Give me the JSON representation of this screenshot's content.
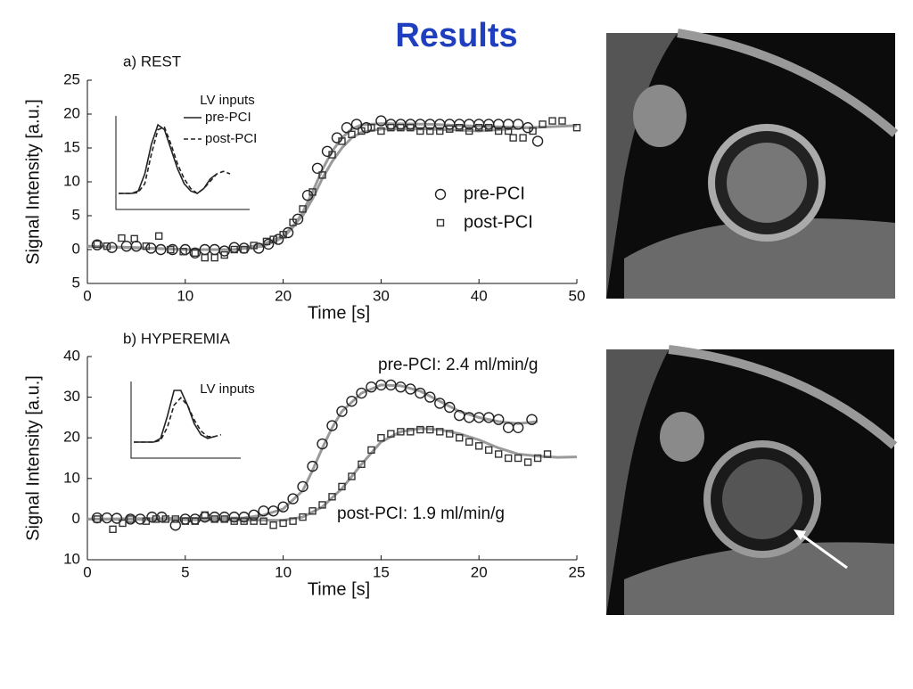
{
  "title": "Results",
  "chart_data": [
    {
      "type": "scatter",
      "title": "a) REST",
      "xlabel": "Time [s]",
      "ylabel": "Signal Intensity [a.u.]",
      "xlim": [
        0,
        50
      ],
      "ylim": [
        -5,
        25
      ],
      "xticks": [
        0,
        10,
        20,
        30,
        40,
        50
      ],
      "yticks": [
        {
          "value": -5,
          "label": "5"
        },
        0,
        5,
        10,
        15,
        20,
        25
      ],
      "legend": true,
      "series": [
        {
          "name": "pre-PCI",
          "marker": "circle",
          "color": "#222222",
          "x": [
            1,
            2.5,
            4,
            5,
            6.5,
            7.5,
            8.7,
            10,
            11,
            12,
            13,
            14,
            15,
            16,
            17.5,
            18.5,
            19.5,
            20.5,
            21.5,
            22.5,
            23.5,
            24.5,
            25.5,
            26.5,
            27.5,
            28.5,
            30,
            31,
            32,
            33,
            34,
            35,
            36,
            37,
            38,
            39,
            40,
            41,
            42,
            43,
            44,
            45,
            46
          ],
          "values": [
            0.7,
            0.3,
            0.5,
            0.5,
            0.2,
            0,
            0,
            0,
            -0.5,
            0,
            0,
            -0.2,
            0.3,
            0.2,
            0.2,
            0.8,
            1.5,
            2.5,
            4.5,
            8,
            12,
            14.5,
            16.5,
            18,
            18.5,
            18,
            19,
            18.5,
            18.5,
            18.5,
            18.5,
            18.5,
            18.5,
            18.5,
            18.5,
            18.5,
            18.5,
            18.5,
            18.5,
            18.5,
            18.5,
            18,
            16
          ]
        },
        {
          "name": "post-PCI",
          "marker": "square",
          "color": "#333333",
          "x": [
            1,
            2,
            3.5,
            4.8,
            6,
            7.3,
            8.5,
            9.8,
            11,
            12,
            13,
            14,
            15,
            16,
            17,
            18.3,
            19,
            20,
            21,
            22,
            23,
            24,
            25,
            26,
            27,
            28,
            29,
            30,
            31,
            32,
            33,
            34,
            35,
            36,
            37,
            38,
            39,
            40,
            41,
            42,
            43,
            43.5,
            44.5,
            45.5,
            46.5,
            47.5,
            48.5,
            50
          ],
          "values": [
            0.8,
            0.5,
            1.7,
            1.6,
            0.5,
            2,
            0,
            -0.3,
            -0.5,
            -1.2,
            -1.2,
            -0.8,
            0,
            0,
            0.6,
            1.2,
            1.5,
            2.2,
            4,
            6,
            8.5,
            11,
            14,
            16,
            17,
            17.5,
            18,
            17.5,
            18,
            18,
            18,
            17.5,
            17.5,
            17.5,
            17.8,
            18,
            17.5,
            18,
            18,
            17.5,
            17.5,
            16.5,
            16.5,
            17.5,
            18.5,
            19,
            19,
            18
          ]
        },
        {
          "marker": "line",
          "color": "#9a9a9a",
          "x": [
            0,
            5,
            10,
            15,
            18,
            20,
            21,
            22,
            23,
            24,
            25,
            26,
            27,
            28,
            30,
            35,
            40,
            45,
            46
          ],
          "values": [
            0.5,
            0.3,
            0,
            0,
            0.5,
            1.8,
            3.3,
            5.5,
            8.5,
            11.8,
            14.5,
            16.5,
            17.8,
            18.4,
            18.6,
            18.5,
            18.2,
            18,
            18
          ]
        },
        {
          "marker": "line",
          "color": "#9a9a9a",
          "x": [
            0,
            10,
            15,
            18,
            20,
            22,
            23,
            24,
            25,
            26,
            27,
            28,
            30,
            35,
            40,
            45,
            50
          ],
          "values": [
            0.5,
            0,
            0,
            0.8,
            2,
            5,
            7.5,
            10.5,
            13,
            15,
            16.5,
            17.3,
            17.8,
            17.8,
            17.5,
            18,
            18.3
          ]
        }
      ],
      "inset": {
        "title": "LV inputs",
        "series": [
          {
            "name": "pre-PCI",
            "dashed": false,
            "color": "#222222",
            "values": [
              2,
              2,
              2,
              2.5,
              6,
              12,
              16,
              15,
              11,
              7,
              4,
              2.5,
              2,
              3,
              5,
              6
            ]
          },
          {
            "name": "post-PCI",
            "dashed": true,
            "color": "#222222",
            "values": [
              2,
              2,
              2,
              2.2,
              4,
              10,
              15,
              15.5,
              12,
              8,
              5,
              3,
              2,
              3,
              4.5,
              6,
              6.5,
              6
            ]
          }
        ]
      }
    },
    {
      "type": "scatter",
      "title": "b) HYPEREMIA",
      "xlabel": "Time [s]",
      "ylabel": "Signal Intensity [a.u.]",
      "xlim": [
        0,
        25
      ],
      "ylim": [
        -10,
        40
      ],
      "xticks": [
        0,
        5,
        10,
        15,
        20,
        25
      ],
      "yticks": [
        {
          "value": -10,
          "label": "10"
        },
        0,
        10,
        20,
        30,
        40
      ],
      "legend": false,
      "annotations": [
        "pre-PCI: 2.4 ml/min/g",
        "post-PCI: 1.9 ml/min/g"
      ],
      "series": [
        {
          "marker": "circle",
          "color": "#222222",
          "x": [
            0.5,
            1,
            1.5,
            2.2,
            2.7,
            3.3,
            3.8,
            4.5,
            5,
            5.5,
            6,
            6.5,
            7,
            7.5,
            8,
            8.5,
            9,
            9.5,
            10,
            10.5,
            11,
            11.5,
            12,
            12.5,
            13,
            13.5,
            14,
            14.5,
            15,
            15.5,
            16,
            16.5,
            17,
            17.5,
            18,
            18.5,
            19,
            19.5,
            20,
            20.5,
            21,
            21.5,
            22,
            22.7
          ],
          "values": [
            0.3,
            0.3,
            0.2,
            0,
            0,
            0.5,
            0.5,
            -1.5,
            0,
            0,
            0.5,
            0.5,
            0.5,
            0.5,
            0.5,
            1,
            2,
            2,
            3,
            5,
            8,
            13,
            18.5,
            23,
            26.5,
            29,
            31,
            32.5,
            33,
            33,
            32.5,
            32,
            31,
            30,
            28.5,
            27.5,
            25.5,
            25,
            25,
            25,
            24.5,
            22.5,
            22.5,
            24.5
          ]
        },
        {
          "marker": "square",
          "color": "#333333",
          "x": [
            0.5,
            1.3,
            1.8,
            2.2,
            3,
            3.5,
            4,
            4.5,
            5,
            5.5,
            6,
            6.5,
            7,
            7.5,
            8,
            8.5,
            9,
            9.5,
            10,
            10.5,
            11,
            11.5,
            12,
            12.5,
            13,
            13.5,
            14,
            14.5,
            15,
            15.5,
            16,
            16.5,
            17,
            17.5,
            18,
            18.5,
            19,
            19.5,
            20,
            20.5,
            21,
            21.5,
            22,
            22.5,
            23,
            23.5
          ],
          "values": [
            0,
            -2.5,
            -1,
            0,
            -0.5,
            0,
            0,
            0,
            -0.5,
            -0.5,
            1,
            0,
            0,
            -0.5,
            -0.5,
            -0.5,
            -0.5,
            -1.5,
            -1,
            -0.5,
            0.5,
            2,
            3.5,
            5.5,
            8,
            10.5,
            13.5,
            17,
            20,
            21,
            21.5,
            21.5,
            22,
            22,
            21.5,
            21,
            20,
            19,
            18,
            17,
            16,
            15,
            15,
            14,
            15,
            16
          ]
        },
        {
          "marker": "line",
          "color": "#9a9a9a",
          "x": [
            0,
            8,
            9,
            10,
            11,
            11.5,
            12,
            12.5,
            13,
            14,
            15,
            16,
            17,
            18,
            19,
            20,
            21,
            22,
            23
          ],
          "values": [
            0,
            0.3,
            1,
            2.5,
            7,
            12,
            17.5,
            22.5,
            26.5,
            31,
            33,
            32.8,
            31.5,
            29,
            26.5,
            25,
            24,
            23.5,
            24
          ]
        },
        {
          "marker": "line",
          "color": "#9a9a9a",
          "x": [
            0,
            10,
            11,
            12,
            13,
            14,
            15,
            16,
            17,
            18,
            19,
            20,
            21,
            22,
            23,
            24,
            25
          ],
          "values": [
            0,
            -0.3,
            0.5,
            3,
            7.5,
            13.5,
            19,
            21.5,
            22.3,
            22,
            21,
            19.5,
            17.5,
            16,
            15.5,
            15.2,
            15.3
          ]
        }
      ],
      "inset": {
        "title": "LV inputs",
        "series": [
          {
            "dashed": false,
            "color": "#222222",
            "values": [
              1,
              1,
              1,
              1,
              2,
              8,
              15,
              15,
              11,
              6,
              3,
              2,
              2.5
            ]
          },
          {
            "dashed": true,
            "color": "#222222",
            "values": [
              1,
              1,
              1,
              1,
              1.5,
              5,
              11,
              13,
              11,
              7,
              4,
              2.5,
              2.5,
              3
            ]
          }
        ]
      }
    }
  ]
}
